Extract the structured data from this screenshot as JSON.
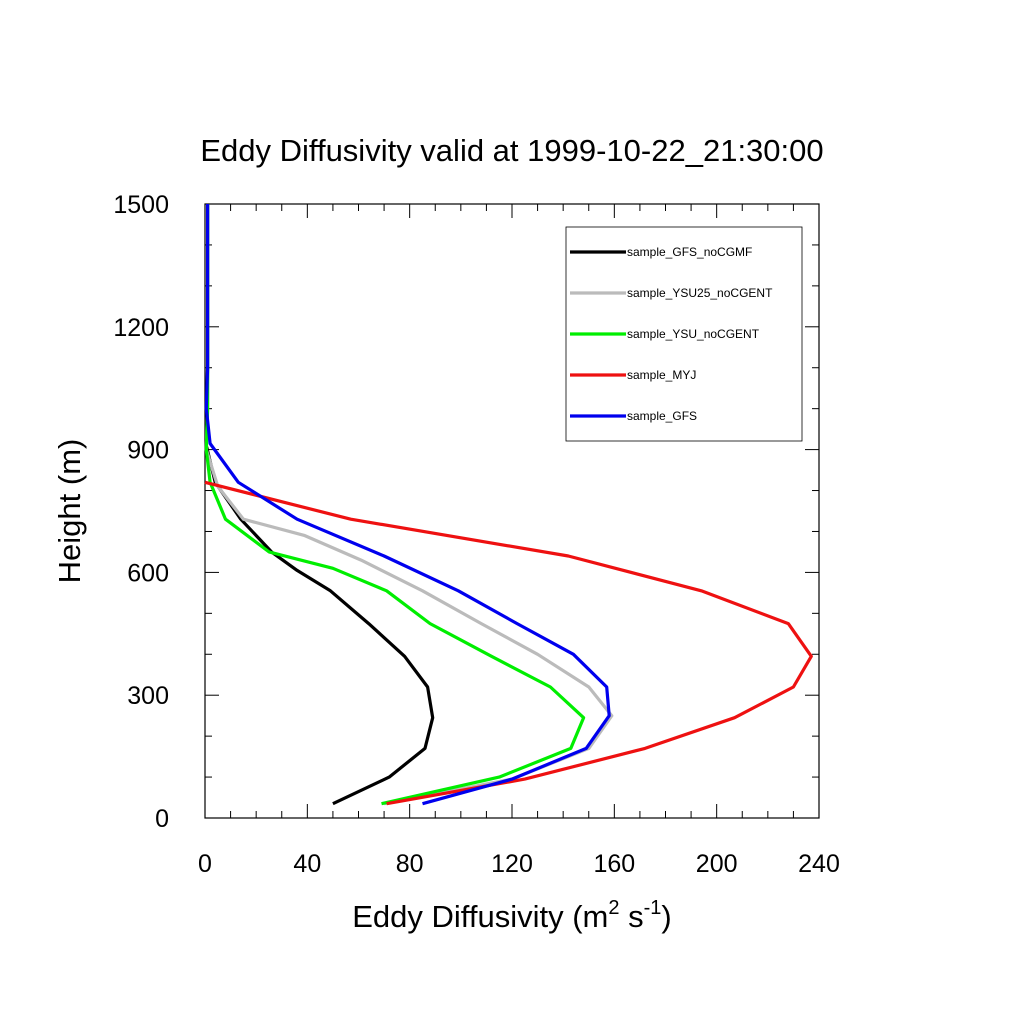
{
  "chart_data": {
    "type": "line",
    "title": "Eddy Diffusivity valid at 1999-10-22_21:30:00",
    "xlabel": {
      "base": "Eddy Diffusivity (m",
      "sup1": "2",
      "mid": " s",
      "sup2": "-1",
      "end": ")"
    },
    "ylabel": "Height (m)",
    "xlim": [
      0,
      240
    ],
    "ylim": [
      0,
      1500
    ],
    "xticks": [
      0,
      40,
      80,
      120,
      160,
      200,
      240
    ],
    "yticks": [
      0,
      300,
      600,
      900,
      1200,
      1500
    ],
    "grid": false,
    "legend_position": "top-right",
    "series": [
      {
        "name": "sample_GFS_noCGMF",
        "color": "#000000",
        "points": [
          [
            50,
            35
          ],
          [
            72,
            100
          ],
          [
            86,
            170
          ],
          [
            89,
            245
          ],
          [
            87,
            320
          ],
          [
            78,
            395
          ],
          [
            64,
            475
          ],
          [
            49,
            555
          ],
          [
            36,
            605
          ],
          [
            26,
            650
          ],
          [
            14,
            730
          ],
          [
            4,
            820
          ],
          [
            0.5,
            910
          ],
          [
            0.8,
            1000
          ],
          [
            1,
            1100
          ],
          [
            1,
            1200
          ],
          [
            1,
            1300
          ],
          [
            1,
            1400
          ],
          [
            1,
            1500
          ]
        ]
      },
      {
        "name": "sample_YSU25_noCGENT",
        "color": "#bbbbbb",
        "points": [
          [
            70,
            35
          ],
          [
            120,
            95
          ],
          [
            150,
            170
          ],
          [
            159,
            250
          ],
          [
            150,
            320
          ],
          [
            130,
            400
          ],
          [
            108,
            475
          ],
          [
            85,
            555
          ],
          [
            61,
            630
          ],
          [
            39,
            690
          ],
          [
            15,
            730
          ],
          [
            5,
            810
          ],
          [
            0.5,
            900
          ],
          [
            1,
            1000
          ],
          [
            1,
            1100
          ],
          [
            1,
            1200
          ],
          [
            1,
            1300
          ],
          [
            1,
            1400
          ],
          [
            1,
            1500
          ]
        ]
      },
      {
        "name": "sample_YSU_noCGENT",
        "color": "#00ee00",
        "points": [
          [
            69,
            35
          ],
          [
            115,
            100
          ],
          [
            143,
            170
          ],
          [
            148,
            245
          ],
          [
            135,
            320
          ],
          [
            112,
            395
          ],
          [
            88,
            475
          ],
          [
            71,
            555
          ],
          [
            50,
            610
          ],
          [
            25,
            650
          ],
          [
            8,
            730
          ],
          [
            2,
            820
          ],
          [
            0.5,
            900
          ],
          [
            1,
            1000
          ],
          [
            1,
            1100
          ],
          [
            1,
            1200
          ],
          [
            1,
            1300
          ],
          [
            1,
            1400
          ],
          [
            1,
            1500
          ]
        ]
      },
      {
        "name": "sample_MYJ",
        "color": "#ee1111",
        "points": [
          [
            71,
            35
          ],
          [
            125,
            95
          ],
          [
            172,
            170
          ],
          [
            207,
            245
          ],
          [
            230,
            320
          ],
          [
            237,
            395
          ],
          [
            228,
            475
          ],
          [
            194,
            555
          ],
          [
            142,
            640
          ],
          [
            57,
            730
          ],
          [
            0,
            820
          ]
        ]
      },
      {
        "name": "sample_GFS",
        "color": "#0000ee",
        "points": [
          [
            85,
            35
          ],
          [
            120,
            95
          ],
          [
            149,
            170
          ],
          [
            158,
            250
          ],
          [
            157,
            320
          ],
          [
            144,
            400
          ],
          [
            122,
            475
          ],
          [
            99,
            555
          ],
          [
            70,
            640
          ],
          [
            36,
            730
          ],
          [
            13,
            820
          ],
          [
            2,
            915
          ],
          [
            0.5,
            1000
          ],
          [
            1,
            1100
          ],
          [
            1,
            1200
          ],
          [
            1,
            1300
          ],
          [
            1,
            1400
          ],
          [
            1,
            1500
          ]
        ]
      }
    ]
  }
}
